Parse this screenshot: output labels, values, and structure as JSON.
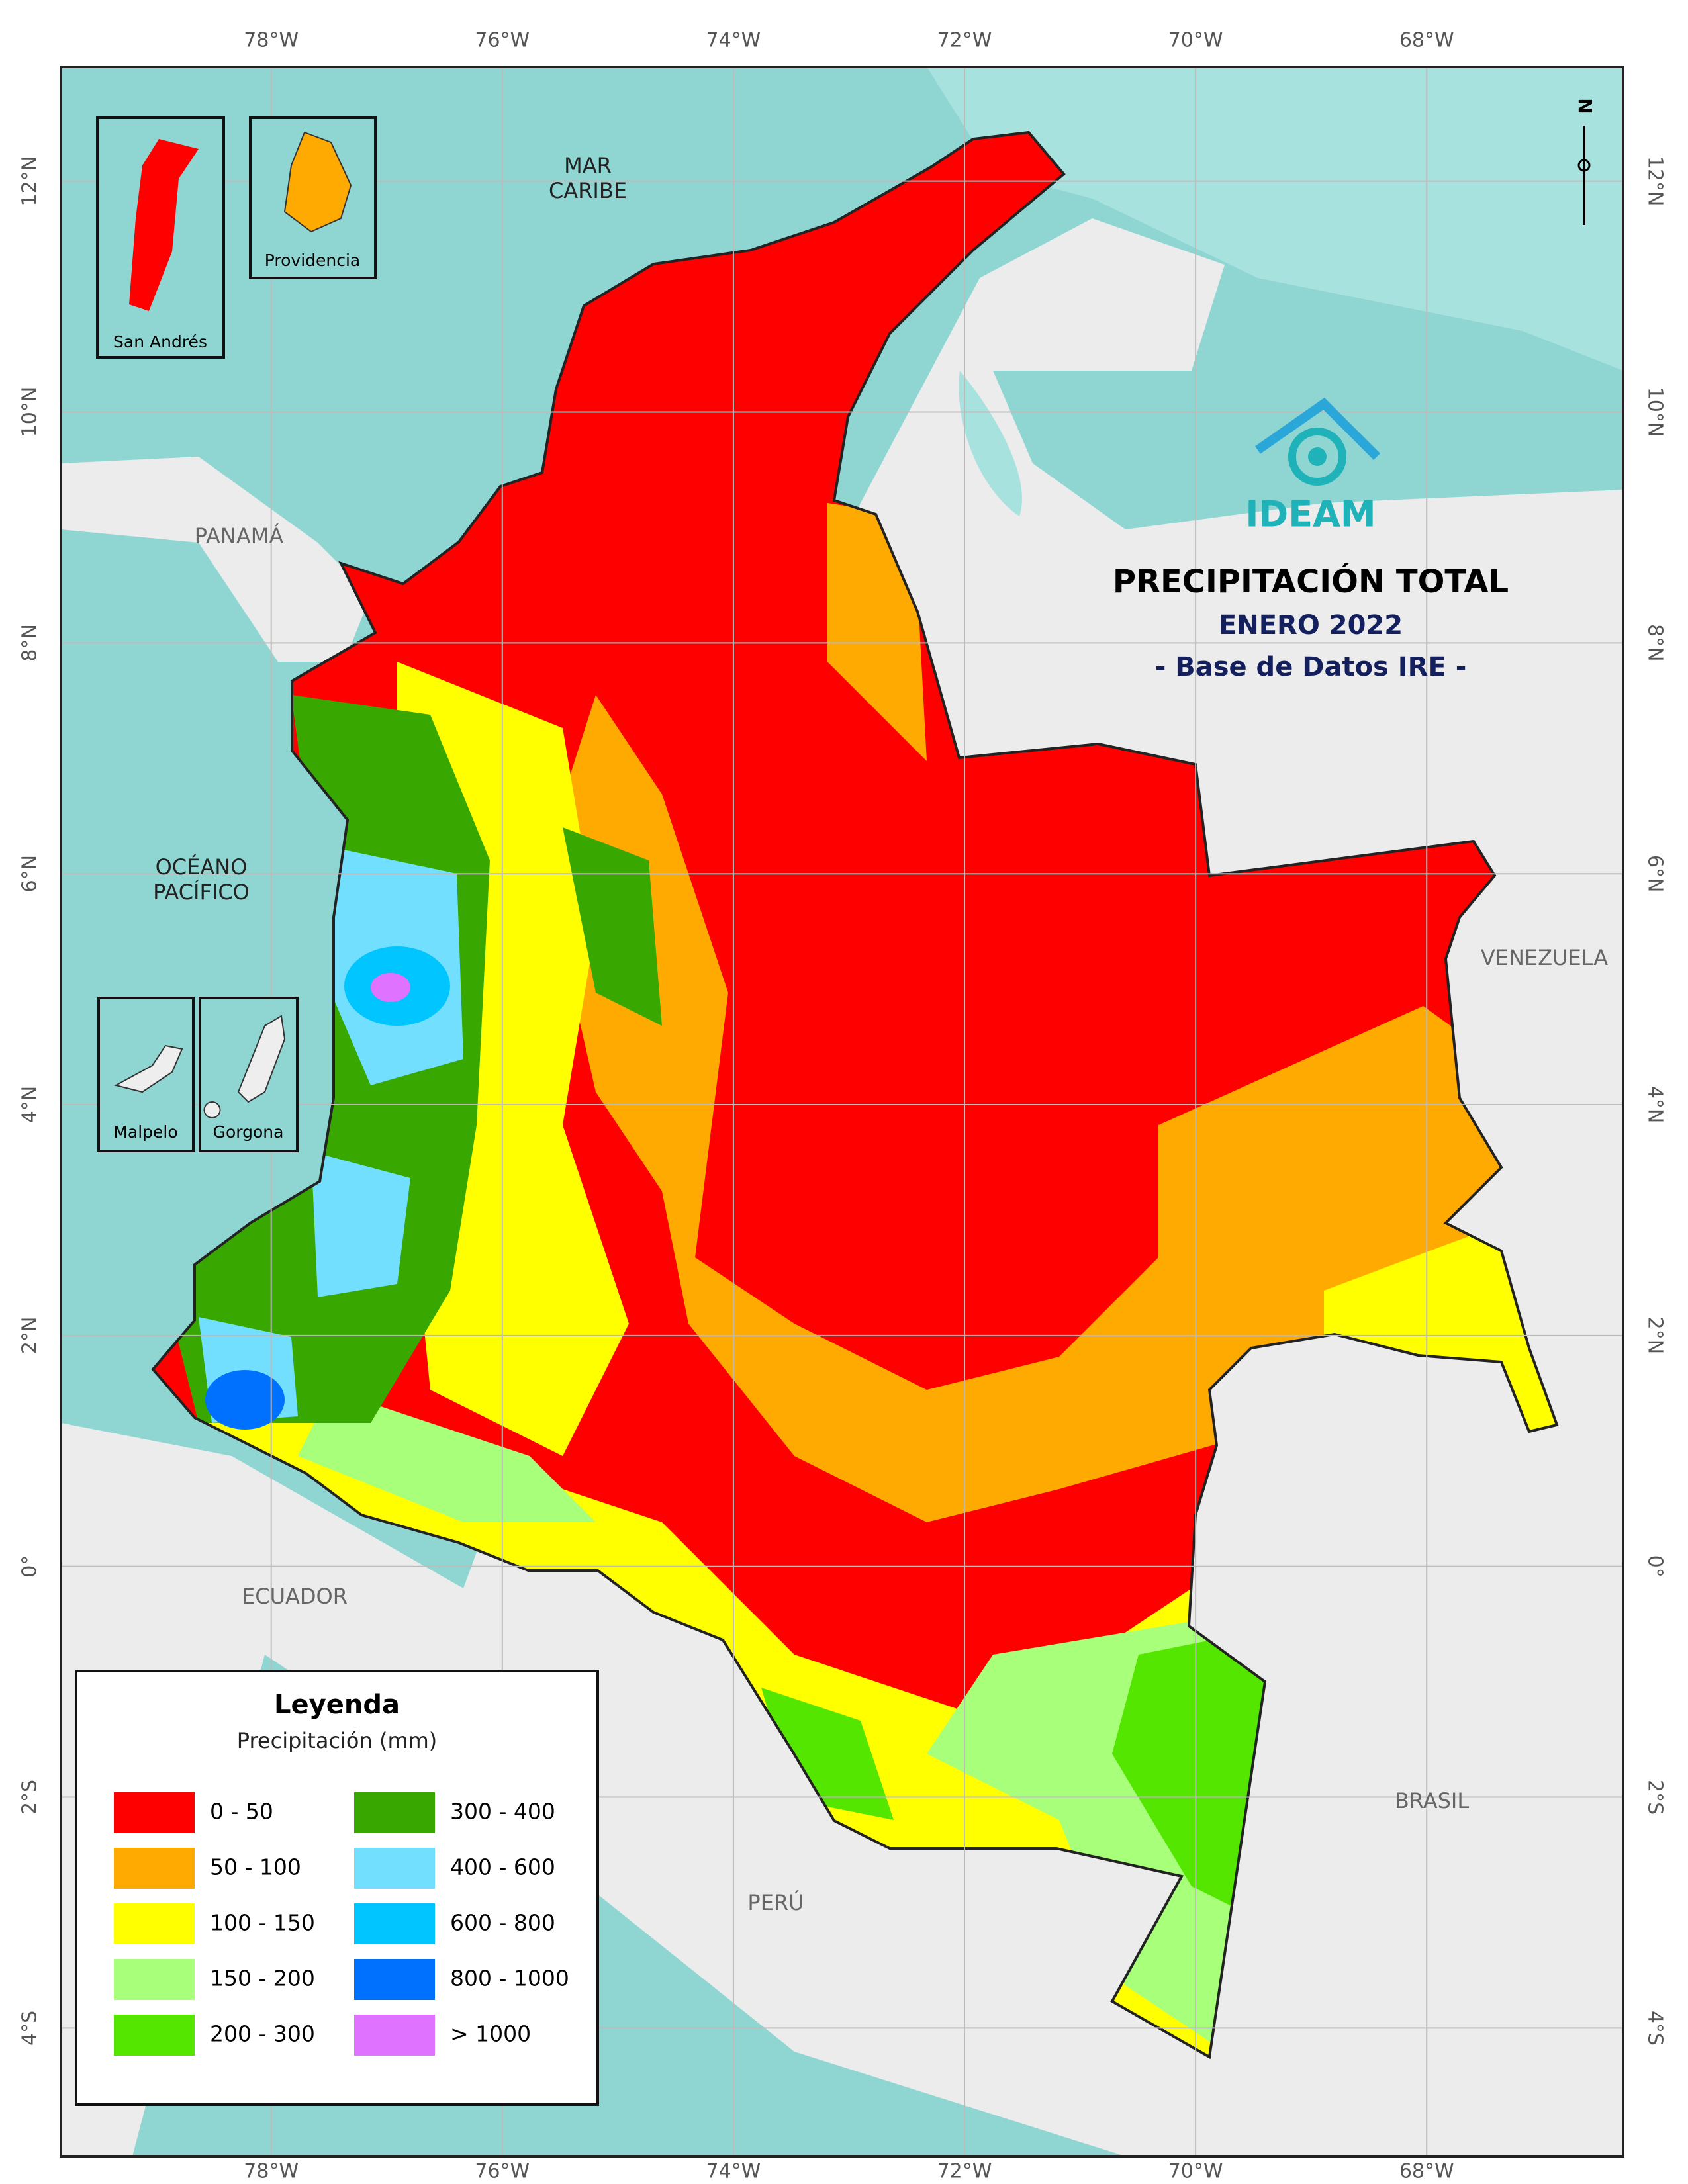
{
  "map": {
    "title": "PRECIPITACIÓN TOTAL",
    "subtitle": "ENERO 2022",
    "source": "- Base de Datos IRE -",
    "logo": "IDEAM",
    "north": "N",
    "xlim": [
      -79.82,
      -66.3
    ],
    "ylim": [
      -5.11,
      12.99
    ],
    "lon_ticks": [
      {
        "value": -78,
        "label": "78°W"
      },
      {
        "value": -76,
        "label": "76°W"
      },
      {
        "value": -74,
        "label": "74°W"
      },
      {
        "value": -72,
        "label": "72°W"
      },
      {
        "value": -70,
        "label": "70°W"
      },
      {
        "value": -68,
        "label": "68°W"
      }
    ],
    "lat_ticks": [
      {
        "value": 12,
        "label": "12°N"
      },
      {
        "value": 10,
        "label": "10°N"
      },
      {
        "value": 8,
        "label": "8°N"
      },
      {
        "value": 6,
        "label": "6°N"
      },
      {
        "value": 4,
        "label": "4°N"
      },
      {
        "value": 2,
        "label": "2°N"
      },
      {
        "value": 0,
        "label": "0°"
      },
      {
        "value": -2,
        "label": "2°S"
      },
      {
        "value": -4,
        "label": "4°S"
      }
    ],
    "places": {
      "caribe": [
        "MAR",
        "CARIBE"
      ],
      "pacifico": [
        "OCÉANO",
        "PACÍFICO"
      ],
      "panama": "PANAMÁ",
      "venezuela": "VENEZUELA",
      "ecuador": "ECUADOR",
      "peru": "PERÚ",
      "brasil": "BRASIL"
    },
    "insets": [
      "San Andrés",
      "Providencia",
      "Malpelo",
      "Gorgona"
    ],
    "legend": {
      "title": "Leyenda",
      "subtitle": "Precipitación (mm)",
      "items": [
        {
          "label": "0 - 50",
          "color": "#ff0000"
        },
        {
          "label": "50 - 100",
          "color": "#ffaa00"
        },
        {
          "label": "100 - 150",
          "color": "#ffff00"
        },
        {
          "label": "150 - 200",
          "color": "#a8ff7a"
        },
        {
          "label": "200 - 300",
          "color": "#55e600"
        },
        {
          "label": "300 - 400",
          "color": "#38a800"
        },
        {
          "label": "400 - 600",
          "color": "#73dfff"
        },
        {
          "label": "600 - 800",
          "color": "#00c5ff"
        },
        {
          "label": "800 - 1000",
          "color": "#0070ff"
        },
        {
          "label": "> 1000",
          "color": "#df73ff"
        }
      ]
    }
  }
}
